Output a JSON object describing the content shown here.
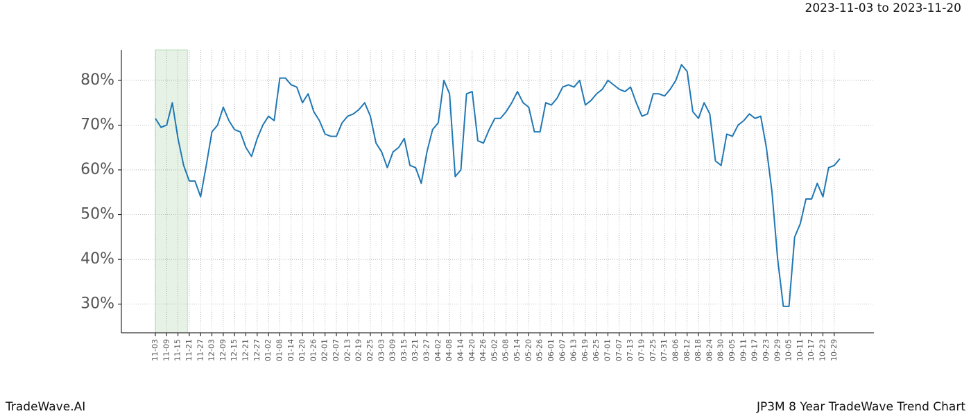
{
  "header": {
    "date_range": "2023-11-03 to 2023-11-20"
  },
  "footer": {
    "brand": "TradeWave.AI",
    "chart_name": "JP3M 8 Year TradeWave Trend Chart"
  },
  "chart_data": {
    "type": "line",
    "categories": [
      "11-03",
      null,
      "11-09",
      null,
      "11-15",
      null,
      "11-21",
      null,
      "11-27",
      null,
      "12-03",
      null,
      "12-09",
      null,
      "12-15",
      null,
      "12-21",
      null,
      "12-27",
      null,
      "01-02",
      null,
      "01-08",
      null,
      "01-14",
      null,
      "01-20",
      null,
      "01-26",
      null,
      "02-01",
      null,
      "02-07",
      null,
      "02-13",
      null,
      "02-19",
      null,
      "02-25",
      null,
      "03-03",
      null,
      "03-09",
      null,
      "03-15",
      null,
      "03-21",
      null,
      "03-27",
      null,
      "04-02",
      null,
      "04-08",
      null,
      "04-14",
      null,
      "04-20",
      null,
      "04-26",
      null,
      "05-02",
      null,
      "05-08",
      null,
      "05-14",
      null,
      "05-20",
      null,
      "05-26",
      null,
      "06-01",
      null,
      "06-07",
      null,
      "06-13",
      null,
      "06-19",
      null,
      "06-25",
      null,
      "07-01",
      null,
      "07-07",
      null,
      "07-13",
      null,
      "07-19",
      null,
      "07-25",
      null,
      "07-31",
      null,
      "08-06",
      null,
      "08-12",
      null,
      "08-18",
      null,
      "08-24",
      null,
      "08-30",
      null,
      "09-05",
      null,
      "09-11",
      null,
      "09-17",
      null,
      "09-23",
      null,
      "09-29",
      null,
      "10-05",
      null,
      "10-11",
      null,
      "10-17",
      null,
      "10-23",
      null,
      "10-29",
      null
    ],
    "values": [
      71.5,
      69.5,
      70,
      75,
      67,
      61,
      57.5,
      57.5,
      54,
      61,
      68.5,
      70,
      74,
      71,
      69,
      68.5,
      65,
      63,
      67,
      70,
      72,
      71,
      80.5,
      80.5,
      79,
      78.5,
      75,
      77,
      73,
      71,
      68,
      67.5,
      67.5,
      70.5,
      72,
      72.5,
      73.5,
      75,
      72,
      66,
      64,
      60.5,
      64,
      65,
      67,
      61,
      60.5,
      57,
      64,
      69,
      70.5,
      80,
      77,
      58.5,
      60,
      77,
      77.5,
      66.5,
      66,
      69,
      71.5,
      71.5,
      73,
      75,
      77.5,
      75,
      74,
      68.5,
      68.5,
      75,
      74.5,
      76,
      78.5,
      79,
      78.5,
      80,
      74.5,
      75.5,
      77,
      78,
      80,
      79,
      78,
      77.5,
      78.5,
      75,
      72,
      72.5,
      77,
      77,
      76.5,
      78,
      80,
      83.5,
      82,
      73,
      71.5,
      75,
      72.5,
      62,
      61,
      68,
      67.5,
      70,
      71,
      72.5,
      71.5,
      72,
      65,
      55,
      40,
      29.5,
      29.5,
      45,
      48,
      53.5,
      53.5,
      57,
      54,
      60.5,
      61,
      62.5
    ],
    "color": "#1f77b4",
    "highlight_color": "#e6f2e6",
    "ylim": [
      23.6,
      86.8
    ],
    "yticks": [
      {
        "value": 30,
        "label": "30%"
      },
      {
        "value": 40,
        "label": "40%"
      },
      {
        "value": 50,
        "label": "50%"
      },
      {
        "value": 60,
        "label": "60%"
      },
      {
        "value": 70,
        "label": "70%"
      },
      {
        "value": 80,
        "label": "80%"
      }
    ],
    "grid": true
  }
}
